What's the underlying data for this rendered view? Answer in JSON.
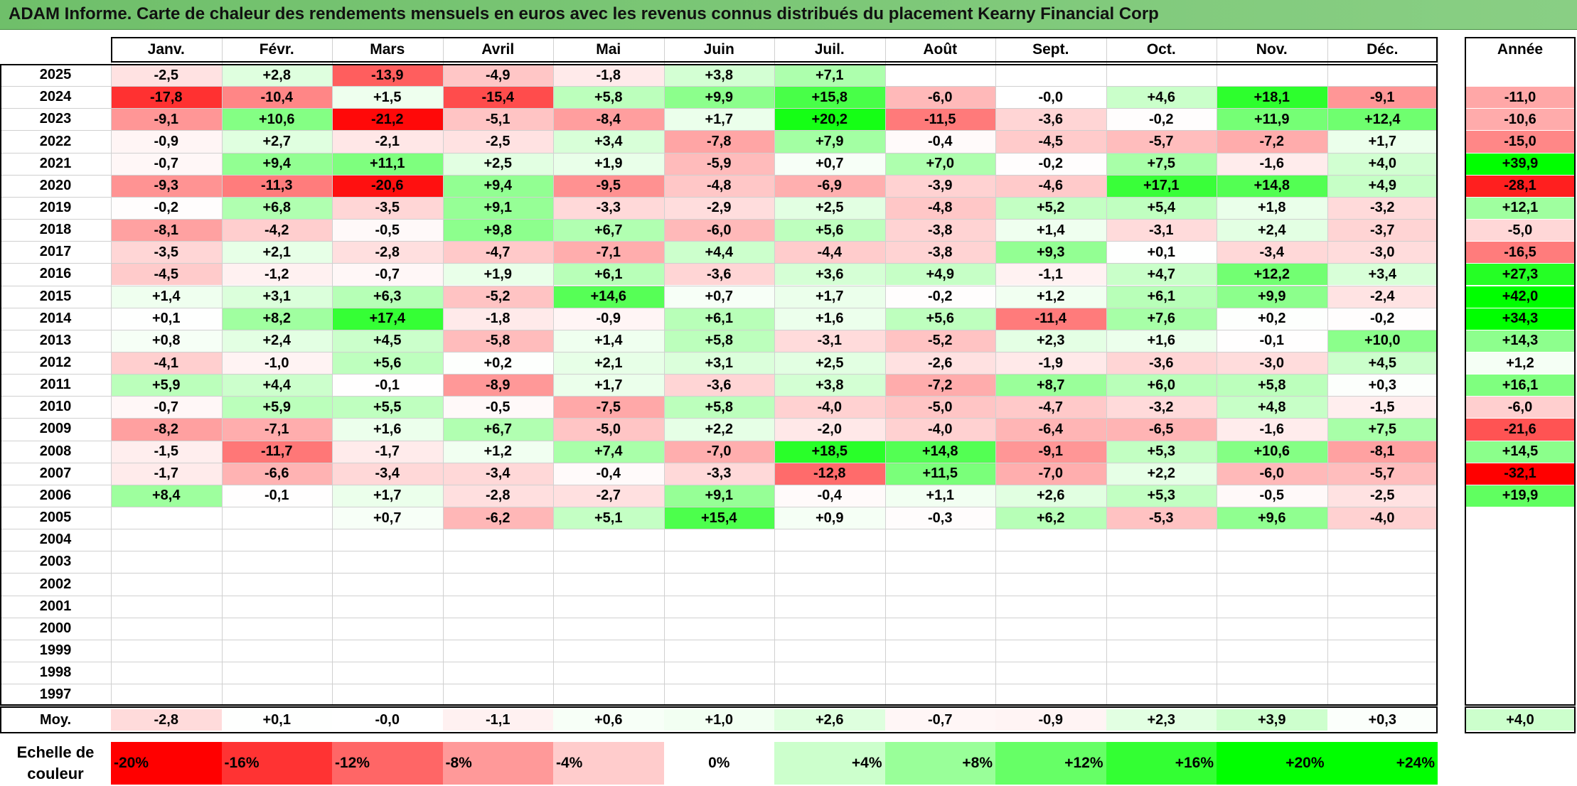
{
  "title": "ADAM Informe. Carte de chaleur des rendements mensuels en euros avec les revenus connus distribués du placement Kearny Financial Corp",
  "chart_data": {
    "type": "heatmap",
    "months": [
      "Janv.",
      "Févr.",
      "Mars",
      "Avril",
      "Mai",
      "Juin",
      "Juil.",
      "Août",
      "Sept.",
      "Oct.",
      "Nov.",
      "Déc."
    ],
    "year_header": "Année",
    "rows": [
      {
        "year": "2025",
        "values": [
          "-2,5",
          "+2,8",
          "-13,9",
          "-4,9",
          "-1,8",
          "+3,8",
          "+7,1",
          "",
          "",
          "",
          "",
          ""
        ],
        "annual": ""
      },
      {
        "year": "2024",
        "values": [
          "-17,8",
          "-10,4",
          "+1,5",
          "-15,4",
          "+5,8",
          "+9,9",
          "+15,8",
          "-6,0",
          "-0,0",
          "+4,6",
          "+18,1",
          "-9,1"
        ],
        "annual": "-11,0"
      },
      {
        "year": "2023",
        "values": [
          "-9,1",
          "+10,6",
          "-21,2",
          "-5,1",
          "-8,4",
          "+1,7",
          "+20,2",
          "-11,5",
          "-3,6",
          "-0,2",
          "+11,9",
          "+12,4"
        ],
        "annual": "-10,6"
      },
      {
        "year": "2022",
        "values": [
          "-0,9",
          "+2,7",
          "-2,1",
          "-2,5",
          "+3,4",
          "-7,8",
          "+7,9",
          "-0,4",
          "-4,5",
          "-5,7",
          "-7,2",
          "+1,7"
        ],
        "annual": "-15,0"
      },
      {
        "year": "2021",
        "values": [
          "-0,7",
          "+9,4",
          "+11,1",
          "+2,5",
          "+1,9",
          "-5,9",
          "+0,7",
          "+7,0",
          "-0,2",
          "+7,5",
          "-1,6",
          "+4,0"
        ],
        "annual": "+39,9"
      },
      {
        "year": "2020",
        "values": [
          "-9,3",
          "-11,3",
          "-20,6",
          "+9,4",
          "-9,5",
          "-4,8",
          "-6,9",
          "-3,9",
          "-4,6",
          "+17,1",
          "+14,8",
          "+4,9"
        ],
        "annual": "-28,1"
      },
      {
        "year": "2019",
        "values": [
          "-0,2",
          "+6,8",
          "-3,5",
          "+9,1",
          "-3,3",
          "-2,9",
          "+2,5",
          "-4,8",
          "+5,2",
          "+5,4",
          "+1,8",
          "-3,2"
        ],
        "annual": "+12,1"
      },
      {
        "year": "2018",
        "values": [
          "-8,1",
          "-4,2",
          "-0,5",
          "+9,8",
          "+6,7",
          "-6,0",
          "+5,6",
          "-3,8",
          "+1,4",
          "-3,1",
          "+2,4",
          "-3,7"
        ],
        "annual": "-5,0"
      },
      {
        "year": "2017",
        "values": [
          "-3,5",
          "+2,1",
          "-2,8",
          "-4,7",
          "-7,1",
          "+4,4",
          "-4,4",
          "-3,8",
          "+9,3",
          "+0,1",
          "-3,4",
          "-3,0"
        ],
        "annual": "-16,5"
      },
      {
        "year": "2016",
        "values": [
          "-4,5",
          "-1,2",
          "-0,7",
          "+1,9",
          "+6,1",
          "-3,6",
          "+3,6",
          "+4,9",
          "-1,1",
          "+4,7",
          "+12,2",
          "+3,4"
        ],
        "annual": "+27,3"
      },
      {
        "year": "2015",
        "values": [
          "+1,4",
          "+3,1",
          "+6,3",
          "-5,2",
          "+14,6",
          "+0,7",
          "+1,7",
          "-0,2",
          "+1,2",
          "+6,1",
          "+9,9",
          "-2,4"
        ],
        "annual": "+42,0"
      },
      {
        "year": "2014",
        "values": [
          "+0,1",
          "+8,2",
          "+17,4",
          "-1,8",
          "-0,9",
          "+6,1",
          "+1,6",
          "+5,6",
          "-11,4",
          "+7,6",
          "+0,2",
          "-0,2"
        ],
        "annual": "+34,3"
      },
      {
        "year": "2013",
        "values": [
          "+0,8",
          "+2,4",
          "+4,5",
          "-5,8",
          "+1,4",
          "+5,8",
          "-3,1",
          "-5,2",
          "+2,3",
          "+1,6",
          "-0,1",
          "+10,0"
        ],
        "annual": "+14,3"
      },
      {
        "year": "2012",
        "values": [
          "-4,1",
          "-1,0",
          "+5,6",
          "+0,2",
          "+2,1",
          "+3,1",
          "+2,5",
          "-2,6",
          "-1,9",
          "-3,6",
          "-3,0",
          "+4,5"
        ],
        "annual": "+1,2"
      },
      {
        "year": "2011",
        "values": [
          "+5,9",
          "+4,4",
          "-0,1",
          "-8,9",
          "+1,7",
          "-3,6",
          "+3,8",
          "-7,2",
          "+8,7",
          "+6,0",
          "+5,8",
          "+0,3"
        ],
        "annual": "+16,1"
      },
      {
        "year": "2010",
        "values": [
          "-0,7",
          "+5,9",
          "+5,5",
          "-0,5",
          "-7,5",
          "+5,8",
          "-4,0",
          "-5,0",
          "-4,7",
          "-3,2",
          "+4,8",
          "-1,5"
        ],
        "annual": "-6,0"
      },
      {
        "year": "2009",
        "values": [
          "-8,2",
          "-7,1",
          "+1,6",
          "+6,7",
          "-5,0",
          "+2,2",
          "-2,0",
          "-4,0",
          "-6,4",
          "-6,5",
          "-1,6",
          "+7,5"
        ],
        "annual": "-21,6"
      },
      {
        "year": "2008",
        "values": [
          "-1,5",
          "-11,7",
          "-1,7",
          "+1,2",
          "+7,4",
          "-7,0",
          "+18,5",
          "+14,8",
          "-9,1",
          "+5,3",
          "+10,6",
          "-8,1"
        ],
        "annual": "+14,5"
      },
      {
        "year": "2007",
        "values": [
          "-1,7",
          "-6,6",
          "-3,4",
          "-3,4",
          "-0,4",
          "-3,3",
          "-12,8",
          "+11,5",
          "-7,0",
          "+2,2",
          "-6,0",
          "-5,7"
        ],
        "annual": "-32,1"
      },
      {
        "year": "2006",
        "values": [
          "+8,4",
          "-0,1",
          "+1,7",
          "-2,8",
          "-2,7",
          "+9,1",
          "-0,4",
          "+1,1",
          "+2,6",
          "+5,3",
          "-0,5",
          "-2,5"
        ],
        "annual": "+19,9"
      },
      {
        "year": "2005",
        "values": [
          "",
          "",
          "+0,7",
          "-6,2",
          "+5,1",
          "+15,4",
          "+0,9",
          "-0,3",
          "+6,2",
          "-5,3",
          "+9,6",
          "-4,0"
        ],
        "annual": ""
      },
      {
        "year": "2004",
        "values": [
          "",
          "",
          "",
          "",
          "",
          "",
          "",
          "",
          "",
          "",
          "",
          ""
        ],
        "annual": ""
      },
      {
        "year": "2003",
        "values": [
          "",
          "",
          "",
          "",
          "",
          "",
          "",
          "",
          "",
          "",
          "",
          ""
        ],
        "annual": ""
      },
      {
        "year": "2002",
        "values": [
          "",
          "",
          "",
          "",
          "",
          "",
          "",
          "",
          "",
          "",
          "",
          ""
        ],
        "annual": ""
      },
      {
        "year": "2001",
        "values": [
          "",
          "",
          "",
          "",
          "",
          "",
          "",
          "",
          "",
          "",
          "",
          ""
        ],
        "annual": ""
      },
      {
        "year": "2000",
        "values": [
          "",
          "",
          "",
          "",
          "",
          "",
          "",
          "",
          "",
          "",
          "",
          ""
        ],
        "annual": ""
      },
      {
        "year": "1999",
        "values": [
          "",
          "",
          "",
          "",
          "",
          "",
          "",
          "",
          "",
          "",
          "",
          ""
        ],
        "annual": ""
      },
      {
        "year": "1998",
        "values": [
          "",
          "",
          "",
          "",
          "",
          "",
          "",
          "",
          "",
          "",
          "",
          ""
        ],
        "annual": ""
      },
      {
        "year": "1997",
        "values": [
          "",
          "",
          "",
          "",
          "",
          "",
          "",
          "",
          "",
          "",
          "",
          ""
        ],
        "annual": ""
      }
    ],
    "average": {
      "label": "Moy.",
      "values": [
        "-2,8",
        "+0,1",
        "-0,0",
        "-1,1",
        "+0,6",
        "+1,0",
        "+2,6",
        "-0,7",
        "-0,9",
        "+2,3",
        "+3,9",
        "+0,3"
      ],
      "annual": "+4,0"
    },
    "scale": {
      "label": "Echelle de couleur",
      "steps": [
        "-20%",
        "-16%",
        "-12%",
        "-8%",
        "-4%",
        "0%",
        "+4%",
        "+8%",
        "+12%",
        "+16%",
        "+20%",
        "+24%"
      ]
    },
    "colors": {
      "negative_max": "#ff0000",
      "neutral": "#ffffff",
      "positive_max": "#00ff00",
      "title_bar": "#7ac775"
    }
  }
}
